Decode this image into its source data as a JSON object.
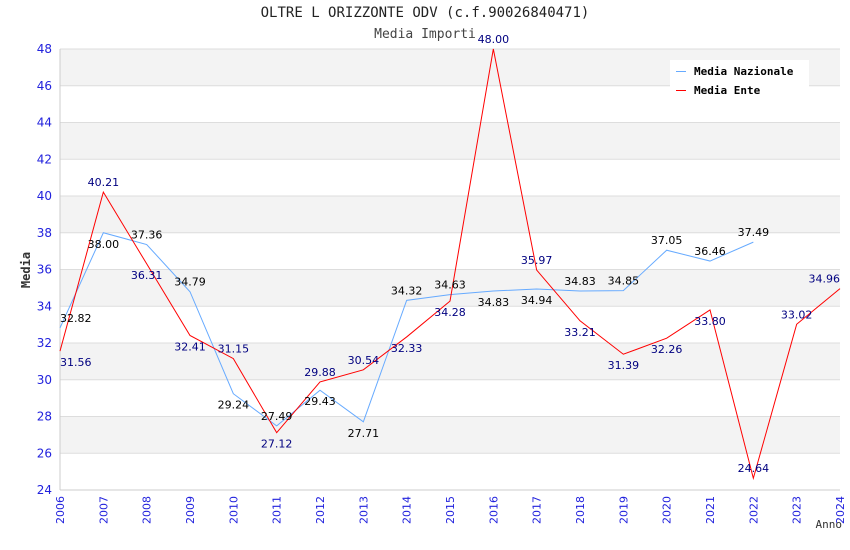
{
  "chart_data": {
    "type": "line",
    "title": "OLTRE L ORIZZONTE ODV (c.f.90026840471)",
    "subtitle": "Media Importi",
    "xlabel": "Anno",
    "ylabel": "Media",
    "ylim": [
      24,
      48
    ],
    "yticks": [
      24,
      26,
      28,
      30,
      32,
      34,
      36,
      38,
      40,
      42,
      44,
      46,
      48
    ],
    "x": [
      2006,
      2007,
      2008,
      2009,
      2010,
      2011,
      2012,
      2013,
      2014,
      2015,
      2016,
      2017,
      2018,
      2019,
      2020,
      2021,
      2022,
      2023,
      2024
    ],
    "legend_position": "top-right",
    "grid": true,
    "series": [
      {
        "name": "Media Nazionale",
        "color": "#66aaff",
        "label_color": "#000000",
        "values": [
          32.82,
          38.0,
          37.36,
          34.79,
          29.24,
          27.49,
          29.43,
          27.71,
          34.32,
          34.63,
          34.83,
          34.94,
          34.83,
          34.85,
          37.05,
          36.46,
          37.49,
          null,
          null
        ]
      },
      {
        "name": "Media Ente",
        "color": "#ff0000",
        "label_color": "#000080",
        "values": [
          31.56,
          40.21,
          36.31,
          32.41,
          31.15,
          27.12,
          29.88,
          30.54,
          32.33,
          34.28,
          48.0,
          35.97,
          33.21,
          31.39,
          32.26,
          33.8,
          24.64,
          33.02,
          34.96
        ]
      }
    ]
  }
}
